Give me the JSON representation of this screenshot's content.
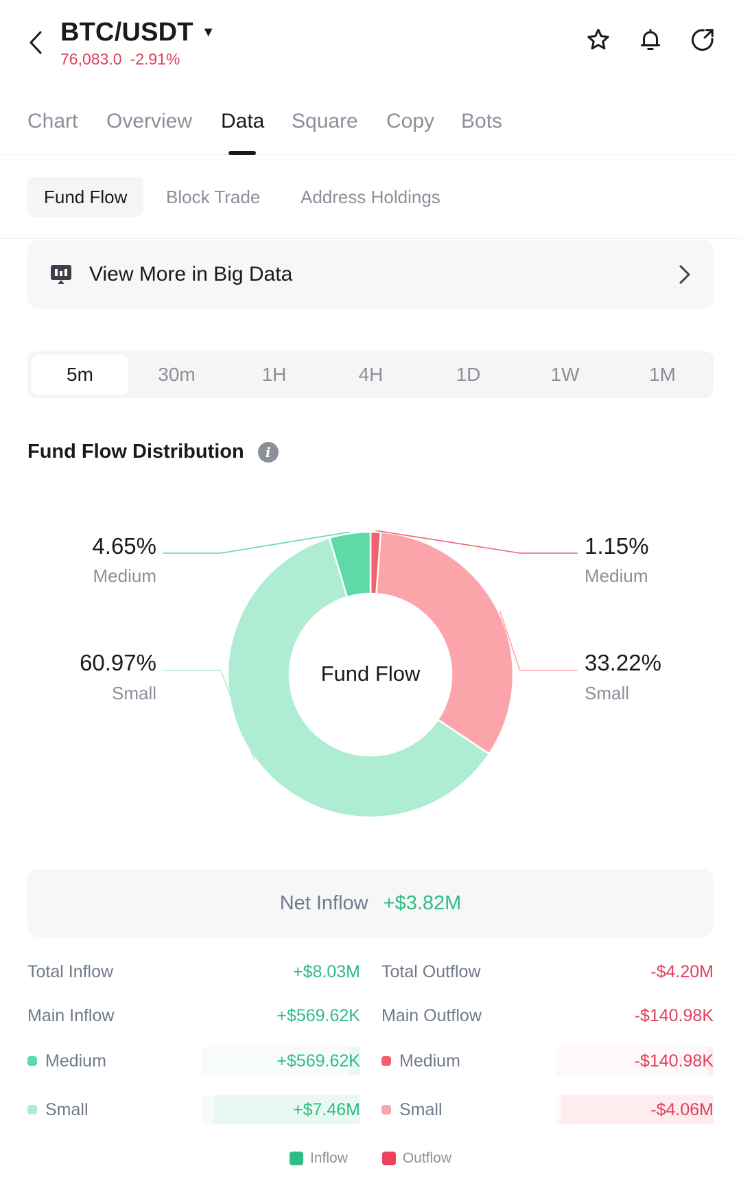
{
  "header": {
    "pair": "BTC/USDT",
    "price": "76,083.0",
    "change": "-2.91%"
  },
  "tabs": [
    "Chart",
    "Overview",
    "Data",
    "Square",
    "Copy",
    "Bots"
  ],
  "subtabs": [
    "Fund Flow",
    "Block Trade",
    "Address Holdings"
  ],
  "big_data": {
    "label": "View More in Big Data"
  },
  "timeframes": [
    "5m",
    "30m",
    "1H",
    "4H",
    "1D",
    "1W",
    "1M"
  ],
  "section": {
    "title": "Fund Flow Distribution"
  },
  "colors": {
    "inflow_medium": "#5fd9a8",
    "inflow_small": "#aeedd3",
    "outflow_medium": "#f0606e",
    "outflow_small": "#fba5aa",
    "green_text": "#2ebd85",
    "red_text": "#e0405c"
  },
  "chart_data": {
    "type": "pie",
    "title": "Fund Flow Distribution",
    "center_label": "Fund Flow",
    "slices": [
      {
        "name": "Outflow Medium",
        "label": "Medium",
        "value": 1.15,
        "display": "1.15%"
      },
      {
        "name": "Outflow Small",
        "label": "Small",
        "value": 33.22,
        "display": "33.22%"
      },
      {
        "name": "Inflow Small",
        "label": "Small",
        "value": 60.97,
        "display": "60.97%"
      },
      {
        "name": "Inflow Medium",
        "label": "Medium",
        "value": 4.65,
        "display": "4.65%"
      }
    ]
  },
  "net_inflow": {
    "label": "Net Inflow",
    "value": "+$3.82M"
  },
  "inflow": {
    "total_label": "Total Inflow",
    "total_value": "+$8.03M",
    "main_label": "Main Inflow",
    "main_value": "+$569.62K",
    "medium_label": "Medium",
    "medium_value": "+$569.62K",
    "medium_ratio": 0.071,
    "small_label": "Small",
    "small_value": "+$7.46M",
    "small_ratio": 0.929
  },
  "outflow": {
    "total_label": "Total Outflow",
    "total_value": "-$4.20M",
    "main_label": "Main Outflow",
    "main_value": "-$140.98K",
    "medium_label": "Medium",
    "medium_value": "-$140.98K",
    "medium_ratio": 0.034,
    "small_label": "Small",
    "small_value": "-$4.06M",
    "small_ratio": 0.966
  },
  "legend": {
    "inflow": "Inflow",
    "outflow": "Outflow"
  }
}
